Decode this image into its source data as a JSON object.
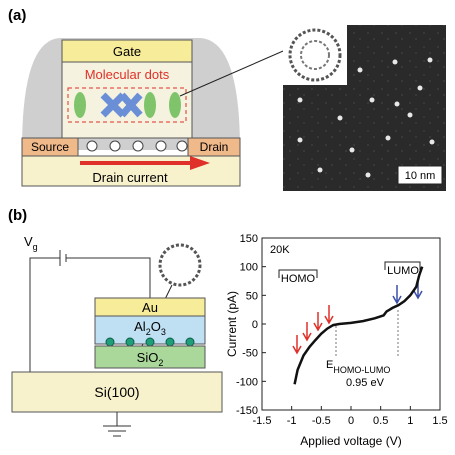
{
  "panel_a": {
    "label": "(a)",
    "gate": "Gate",
    "dots": "Molecular dots",
    "source": "Source",
    "drain": "Drain",
    "current": "Drain current",
    "scale": "10 nm"
  },
  "panel_b": {
    "label": "(b)",
    "vg": {
      "main": "V",
      "sub": "g"
    },
    "au": "Au",
    "al2o3": [
      "Al",
      "2",
      "O",
      "3"
    ],
    "sio2": [
      "SiO",
      "2"
    ],
    "si": "Si(100)"
  },
  "chart_data": {
    "type": "line",
    "xlabel": "Applied voltage (V)",
    "ylabel": "Current (pA)",
    "annotations": {
      "temp": "20K",
      "homo": "HOMO",
      "lumo": "LUMO",
      "gap_main": "E",
      "gap_sub": "HOMO-LUMO",
      "gap_value": "0.95 eV"
    },
    "color": "#111111",
    "x": [
      -0.95,
      -0.9,
      -0.8,
      -0.7,
      -0.6,
      -0.5,
      -0.4,
      -0.3,
      -0.2,
      0,
      0.2,
      0.4,
      0.55,
      0.6,
      0.65,
      0.7,
      0.8,
      0.9,
      1.0,
      1.1,
      1.15,
      1.2
    ],
    "values": [
      -105,
      -80,
      -55,
      -40,
      -28,
      -17,
      -8,
      -2,
      0,
      2,
      5,
      10,
      15,
      22,
      25,
      28,
      33,
      40,
      50,
      65,
      85,
      100
    ],
    "xlim": [
      -1.5,
      1.5
    ],
    "xticks": [
      -1.5,
      -1,
      -0.5,
      0,
      0.5,
      1,
      1.5
    ],
    "ylim": [
      -150,
      150
    ],
    "yticks": [
      -150,
      -100,
      -50,
      0,
      50,
      100,
      150
    ]
  }
}
